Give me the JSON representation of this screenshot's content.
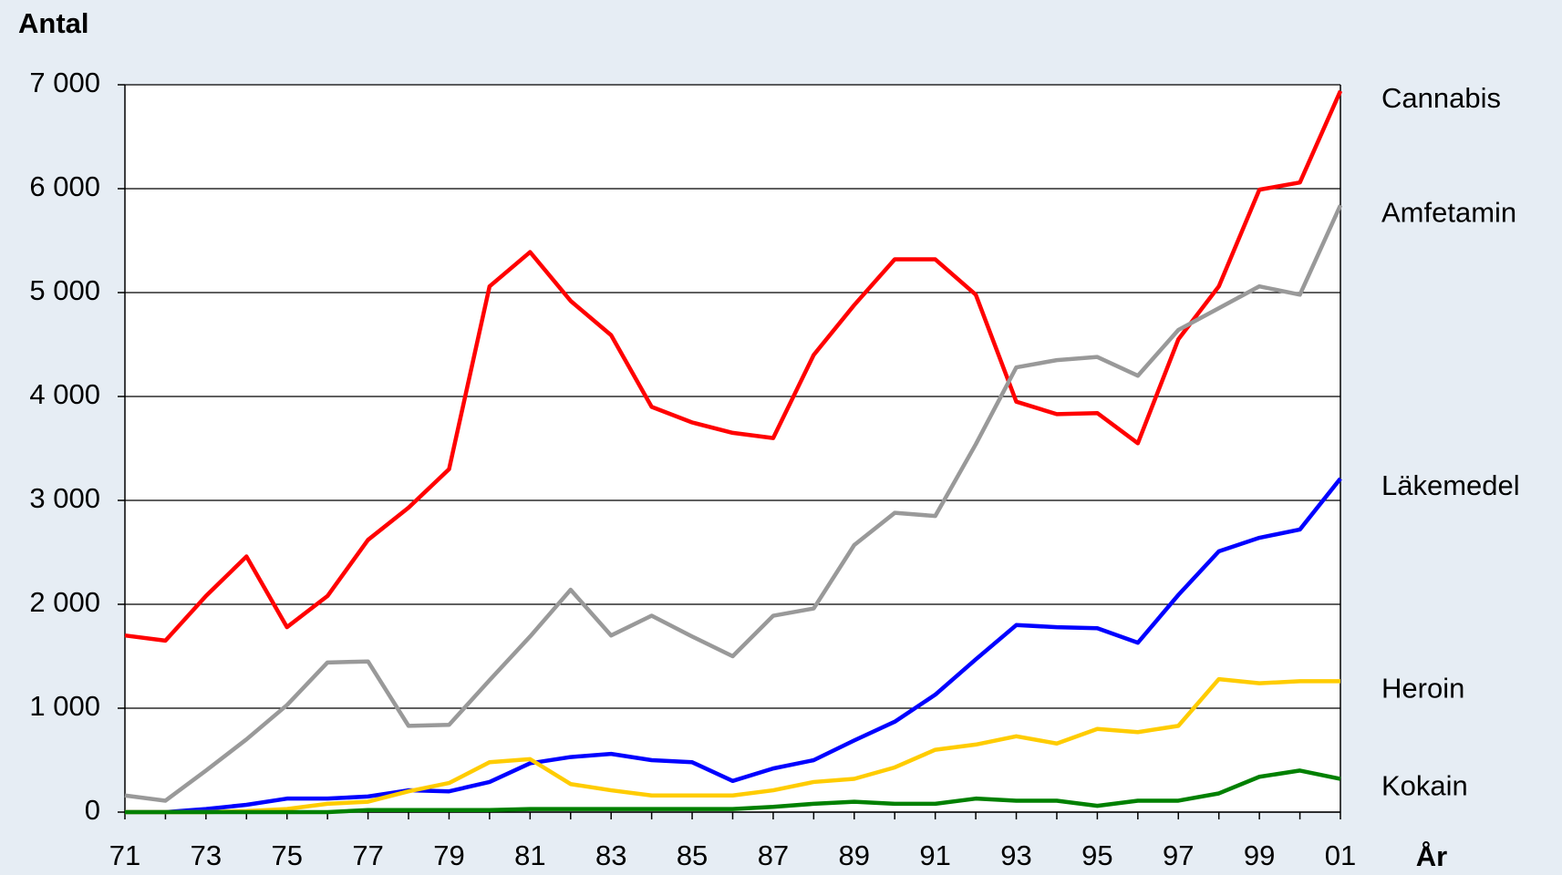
{
  "chart_data": {
    "type": "line",
    "y_label": "Antal",
    "x_label": "År",
    "categories": [
      "71",
      null,
      "73",
      null,
      "75",
      null,
      "77",
      null,
      "79",
      null,
      "81",
      null,
      "83",
      null,
      "85",
      null,
      "87",
      null,
      "89",
      null,
      "91",
      null,
      "93",
      null,
      "95",
      null,
      "97",
      null,
      "99",
      null,
      "01"
    ],
    "ylim": [
      0,
      7000
    ],
    "yticks": [
      0,
      {
        "value": 1000,
        "label": "1 000"
      },
      {
        "value": 2000,
        "label": "2 000"
      },
      {
        "value": 3000,
        "label": "3 000"
      },
      {
        "value": 4000,
        "label": "4 000"
      },
      {
        "value": 5000,
        "label": "5 000"
      },
      {
        "value": 6000,
        "label": "6 000"
      },
      {
        "value": 7000,
        "label": "7 000"
      }
    ],
    "grid": true,
    "series": [
      {
        "name": "Cannabis",
        "color": "#ff0000",
        "values": [
          1700,
          1650,
          2080,
          2460,
          1780,
          2080,
          2620,
          2930,
          3300,
          5060,
          5390,
          4920,
          4590,
          3900,
          3750,
          3650,
          3600,
          4400,
          4880,
          5320,
          5320,
          4980,
          3950,
          3830,
          3840,
          3550,
          4550,
          5060,
          5990,
          6060,
          6940
        ]
      },
      {
        "name": "Amfetamin",
        "color": "#999999",
        "values": [
          160,
          110,
          400,
          700,
          1030,
          1440,
          1450,
          830,
          840,
          1270,
          1690,
          2140,
          1700,
          1890,
          1690,
          1500,
          1890,
          1960,
          2570,
          2880,
          2850,
          3540,
          4280,
          4350,
          4380,
          4200,
          4640,
          4850,
          5060,
          4980,
          5840
        ]
      },
      {
        "name": "Läkemedel",
        "color": "#0000ff",
        "values": [
          0,
          0,
          30,
          70,
          130,
          130,
          150,
          210,
          200,
          290,
          470,
          530,
          560,
          500,
          480,
          300,
          420,
          500,
          690,
          870,
          1130,
          1470,
          1800,
          1780,
          1770,
          1630,
          2090,
          2510,
          2640,
          2720,
          3210
        ]
      },
      {
        "name": "Heroin",
        "color": "#ffcc00",
        "values": [
          0,
          0,
          0,
          10,
          30,
          80,
          100,
          200,
          280,
          480,
          510,
          270,
          210,
          160,
          160,
          160,
          210,
          290,
          320,
          430,
          600,
          650,
          730,
          660,
          800,
          770,
          830,
          1280,
          1240,
          1260,
          1260
        ]
      },
      {
        "name": "Kokain",
        "color": "#008000",
        "values": [
          0,
          0,
          0,
          0,
          0,
          0,
          20,
          20,
          20,
          20,
          30,
          30,
          30,
          30,
          30,
          30,
          50,
          80,
          100,
          80,
          80,
          130,
          110,
          110,
          60,
          110,
          110,
          180,
          340,
          400,
          320
        ]
      }
    ]
  }
}
